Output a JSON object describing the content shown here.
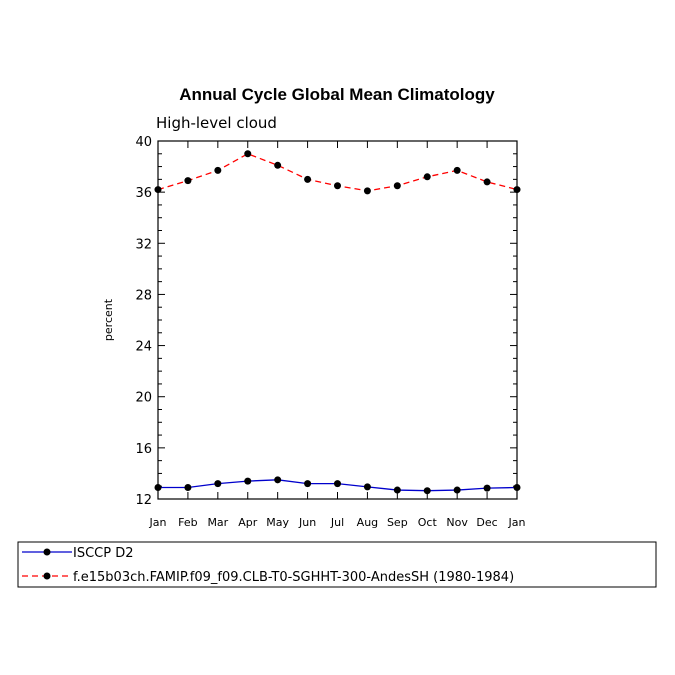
{
  "chart_data": {
    "type": "line",
    "title": "Annual Cycle Global Mean Climatology",
    "subtitle": "High-level cloud",
    "xlabel": "",
    "ylabel": "percent",
    "categories": [
      "Jan",
      "Feb",
      "Mar",
      "Apr",
      "May",
      "Jun",
      "Jul",
      "Aug",
      "Sep",
      "Oct",
      "Nov",
      "Dec",
      "Jan"
    ],
    "ylim": [
      12,
      40
    ],
    "yticks": [
      12,
      16,
      20,
      24,
      28,
      32,
      36,
      40
    ],
    "grid": false,
    "legend_position": "bottom",
    "series": [
      {
        "name": "ISCCP D2",
        "color": "#0000cc",
        "line_style": "solid",
        "marker": "circle",
        "values": [
          12.9,
          12.9,
          13.2,
          13.4,
          13.5,
          13.2,
          13.2,
          12.95,
          12.7,
          12.65,
          12.7,
          12.85,
          12.9
        ]
      },
      {
        "name": "f.e15b03ch.FAMIP.f09_f09.CLB-T0-SGHHT-300-AndesSH (1980-1984)",
        "color": "#ff0000",
        "line_style": "dashed",
        "marker": "circle",
        "values": [
          36.2,
          36.9,
          37.7,
          39.0,
          38.1,
          37.0,
          36.5,
          36.1,
          36.5,
          37.2,
          37.7,
          36.8,
          36.2
        ]
      }
    ]
  }
}
